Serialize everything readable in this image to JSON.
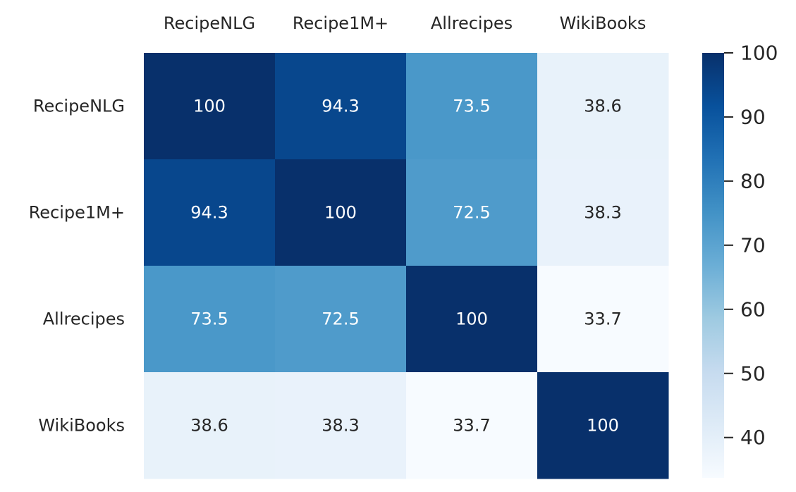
{
  "chart_data": {
    "type": "heatmap",
    "title": "",
    "xlabel": "",
    "ylabel": "",
    "x_categories": [
      "RecipeNLG",
      "Recipe1M+",
      "Allrecipes",
      "WikiBooks"
    ],
    "y_categories": [
      "RecipeNLG",
      "Recipe1M+",
      "Allrecipes",
      "WikiBooks"
    ],
    "x_axis_position": "top",
    "values": [
      [
        100,
        94.3,
        73.5,
        38.6
      ],
      [
        94.3,
        100,
        72.5,
        38.3
      ],
      [
        73.5,
        72.5,
        100,
        33.7
      ],
      [
        38.6,
        38.3,
        33.7,
        100
      ]
    ],
    "labels": [
      [
        "100",
        "94.3",
        "73.5",
        "38.6"
      ],
      [
        "94.3",
        "100",
        "72.5",
        "38.3"
      ],
      [
        "73.5",
        "72.5",
        "100",
        "33.7"
      ],
      [
        "38.6",
        "38.3",
        "33.7",
        "100"
      ]
    ],
    "colormap": "Blues",
    "colorbar": {
      "range": [
        33.7,
        100
      ],
      "ticks": [
        40,
        50,
        60,
        70,
        80,
        90,
        100
      ],
      "tick_labels": [
        "40",
        "50",
        "60",
        "70",
        "80",
        "90",
        "100"
      ],
      "placement": "right"
    },
    "colors": {
      "light_text": "#ffffff",
      "dark_text": "#262626"
    }
  }
}
